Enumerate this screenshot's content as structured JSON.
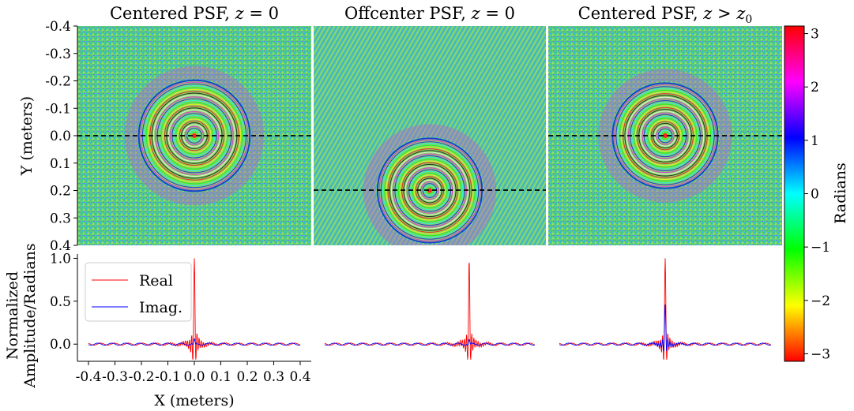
{
  "chart_data": [
    {
      "type": "heatmap",
      "panel": "top-left",
      "title": "Centered PSF, z = 0",
      "title_parts": {
        "prefix": "Centered PSF, ",
        "var": "z",
        "rel": " = ",
        "rhs": "0"
      },
      "ylabel": "Y (meters)",
      "xlim": [
        -0.4,
        0.4
      ],
      "ylim": [
        -0.4,
        0.4
      ],
      "yticks": [
        "-0.4",
        "-0.3",
        "-0.2",
        "-0.1",
        "0.0",
        "0.1",
        "0.2",
        "0.3",
        "0.4"
      ],
      "center": [
        0.0,
        0.0
      ],
      "ring_radius": 0.19,
      "dashed_line_y": 0.0
    },
    {
      "type": "heatmap",
      "panel": "top-middle",
      "title": "Offcenter PSF, z = 0",
      "title_parts": {
        "prefix": "Offcenter PSF, ",
        "var": "z",
        "rel": " = ",
        "rhs": "0"
      },
      "xlim": [
        -0.4,
        0.4
      ],
      "ylim": [
        -0.4,
        0.4
      ],
      "center": [
        0.0,
        0.2
      ],
      "ring_radius": 0.18,
      "dashed_line_y": 0.2
    },
    {
      "type": "heatmap",
      "panel": "top-right",
      "title": "Centered PSF, z > z0",
      "title_parts": {
        "prefix": "Centered PSF, ",
        "var": "z",
        "rel": " > ",
        "rhs": "z",
        "sub": "0"
      },
      "xlim": [
        -0.4,
        0.4
      ],
      "ylim": [
        -0.4,
        0.4
      ],
      "center": [
        0.0,
        0.0
      ],
      "ring_radius": 0.18,
      "dashed_line_y": 0.0
    },
    {
      "type": "line",
      "panel": "bottom-left",
      "xlabel": "X (meters)",
      "ylabel_line1": "Normalized",
      "ylabel_line2": "Amplitude/Radians",
      "xlim": [
        -0.4,
        0.4
      ],
      "ylim": [
        -0.2,
        1.05
      ],
      "xticks": [
        "-0.4",
        "-0.3",
        "-0.2",
        "-0.1",
        "0.0",
        "0.1",
        "0.2",
        "0.3",
        "0.4"
      ],
      "yticks": [
        "0.0",
        "0.5",
        "1.0"
      ],
      "legend": {
        "position": "upper-left",
        "entries": [
          "Real",
          "Imag."
        ]
      },
      "series": [
        {
          "name": "Real",
          "color": "#ff0000",
          "peak": 1.0,
          "center": 0.0,
          "negative_side": -0.18
        },
        {
          "name": "Imag.",
          "color": "#0000ff",
          "peak": 0.05,
          "center": 0.0,
          "negative_side": -0.1
        }
      ]
    },
    {
      "type": "line",
      "panel": "bottom-middle",
      "xlim": [
        -0.4,
        0.4
      ],
      "ylim": [
        -0.2,
        1.05
      ],
      "series": [
        {
          "name": "Real",
          "color": "#ff0000",
          "peak": 1.0,
          "center": 0.15,
          "negative_side": -0.18
        },
        {
          "name": "Imag.",
          "color": "#0000ff",
          "peak": 0.05,
          "center": 0.15,
          "negative_side": -0.1
        }
      ]
    },
    {
      "type": "line",
      "panel": "bottom-right",
      "xlim": [
        -0.4,
        0.4
      ],
      "ylim": [
        -0.2,
        1.05
      ],
      "series": [
        {
          "name": "Real",
          "color": "#ff0000",
          "peak": 1.0,
          "center": 0.0,
          "negative_side": -0.18
        },
        {
          "name": "Imag.",
          "color": "#0000ff",
          "peak": 0.45,
          "center": 0.0,
          "negative_side": -0.1
        }
      ]
    }
  ],
  "colorbar": {
    "label": "Radians",
    "range": [
      -3.14159,
      3.14159
    ],
    "ticks": [
      "3",
      "2",
      "1",
      "0",
      "−1",
      "−2",
      "−3"
    ],
    "colormap": "hsv"
  }
}
